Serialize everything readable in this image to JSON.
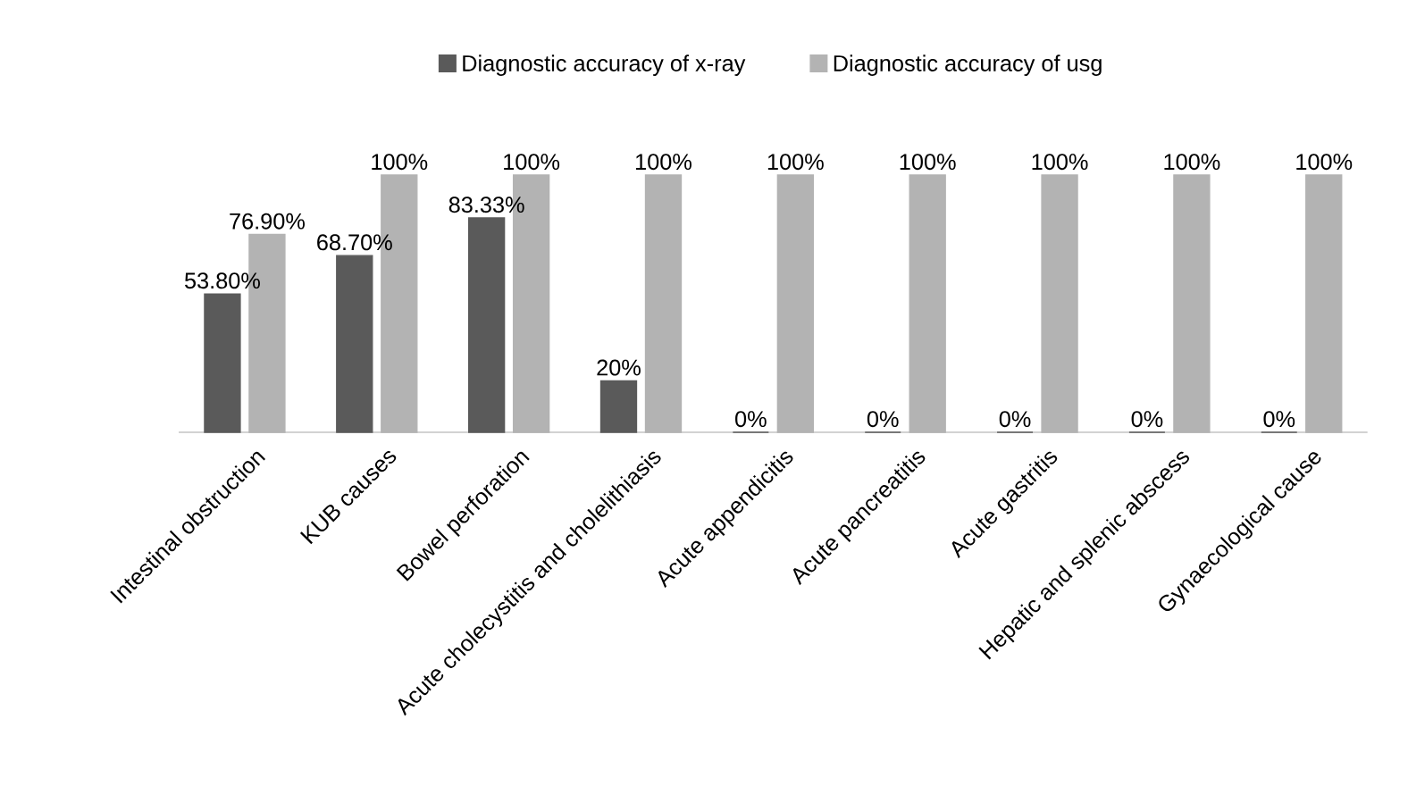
{
  "chart_data": {
    "type": "bar",
    "categories": [
      "Intestinal obstruction",
      "KUB causes",
      "Bowel perforation",
      "Acute cholecystitis and cholelithiasis",
      "Acute appendicitis",
      "Acute pancreatitis",
      "Acute gastritis",
      "Hepatic and splenic abscess",
      "Gynaecological cause"
    ],
    "series": [
      {
        "name": "Diagnostic accuracy of x-ray",
        "color": "#5a5a5a",
        "values": [
          53.8,
          68.7,
          83.33,
          20,
          0,
          0,
          0,
          0,
          0
        ],
        "value_labels": [
          "53.80%",
          "68.70%",
          "83.33%",
          "20%",
          "0%",
          "0%",
          "0%",
          "0%",
          "0%"
        ]
      },
      {
        "name": "Diagnostic accuracy of usg",
        "color": "#b3b3b3",
        "values": [
          76.9,
          100,
          100,
          100,
          100,
          100,
          100,
          100,
          100
        ],
        "value_labels": [
          "76.90%",
          "100%",
          "100%",
          "100%",
          "100%",
          "100%",
          "100%",
          "100%",
          "100%"
        ]
      }
    ],
    "legend": "top"
  }
}
